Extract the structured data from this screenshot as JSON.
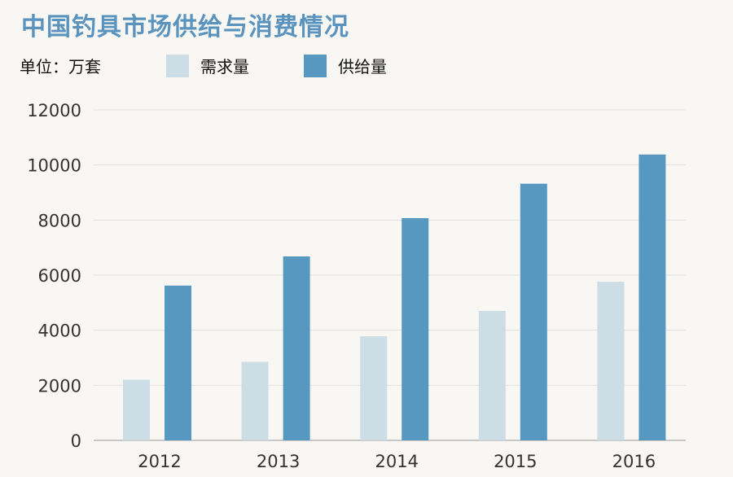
{
  "title": "中国钓具市场供给与消费情况",
  "unit": "单位：万套",
  "colors": {
    "demand": "#cddde6",
    "supply": "#5698bf",
    "grid": "#e1e1e1",
    "axis": "#c8c8c8"
  },
  "chart_data": {
    "type": "bar",
    "title": "中国钓具市场供给与消费情况",
    "unit": "单位：万套",
    "categories": [
      "2012",
      "2013",
      "2014",
      "2015",
      "2016"
    ],
    "series": [
      {
        "name": "需求量",
        "values": [
          2200,
          2850,
          3780,
          4700,
          5760
        ]
      },
      {
        "name": "供给量",
        "values": [
          5620,
          6680,
          8070,
          9320,
          10380
        ]
      }
    ],
    "ylim": [
      0,
      12000
    ],
    "yticks": [
      "0",
      "2000",
      "4000",
      "6000",
      "8000",
      "10000",
      "12000"
    ],
    "grid": true,
    "legend": "top"
  }
}
